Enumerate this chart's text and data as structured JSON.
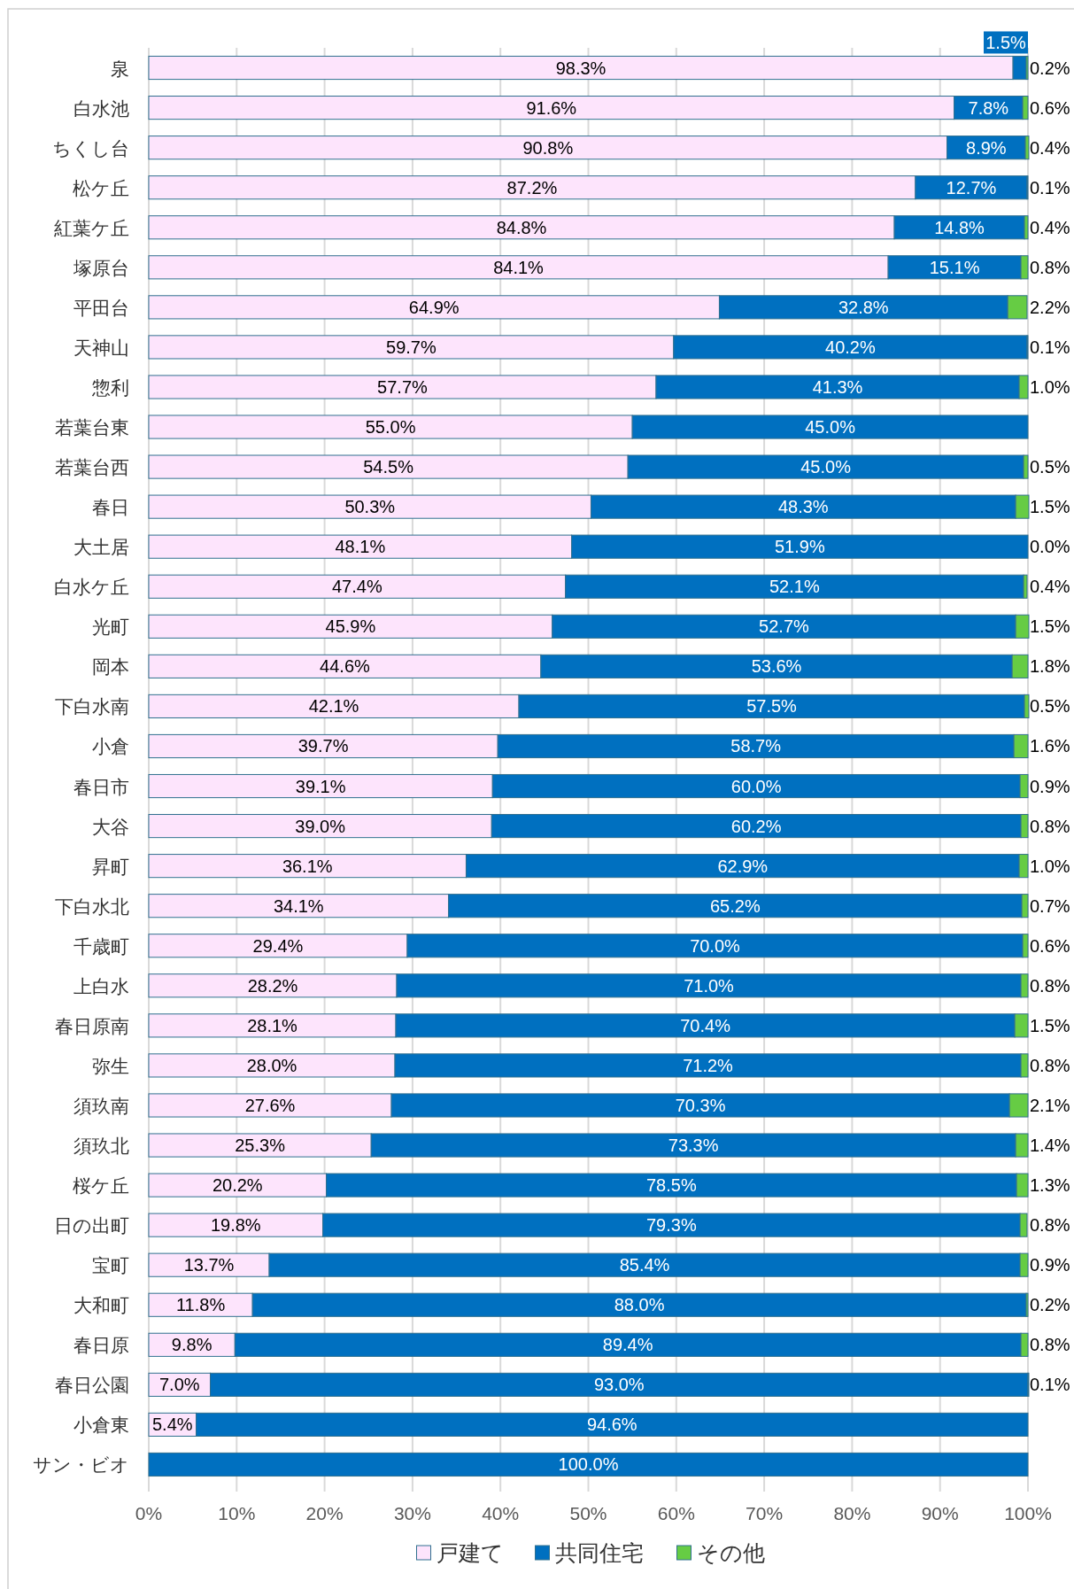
{
  "chart_data": {
    "type": "bar",
    "orientation": "horizontal",
    "stacked": true,
    "grid": "x",
    "legend": "bottom",
    "categories": [
      "泉",
      "白水池",
      "ちくし台",
      "松ケ丘",
      "紅葉ケ丘",
      "塚原台",
      "平田台",
      "天神山",
      "惣利",
      "若葉台東",
      "若葉台西",
      "春日",
      "大土居",
      "白水ケ丘",
      "光町",
      "岡本",
      "下白水南",
      "小倉",
      "春日市",
      "大谷",
      "昇町",
      "下白水北",
      "千歳町",
      "上白水",
      "春日原南",
      "弥生",
      "須玖南",
      "須玖北",
      "桜ケ丘",
      "日の出町",
      "宝町",
      "大和町",
      "春日原",
      "春日公園",
      "小倉東",
      "サン・ビオ"
    ],
    "xlim": [
      0,
      100
    ],
    "xticks": [
      {
        "value": 0,
        "label": "0%"
      },
      {
        "value": 10,
        "label": "10%"
      },
      {
        "value": 20,
        "label": "20%"
      },
      {
        "value": 30,
        "label": "30%"
      },
      {
        "value": 40,
        "label": "40%"
      },
      {
        "value": 50,
        "label": "50%"
      },
      {
        "value": 60,
        "label": "60%"
      },
      {
        "value": 70,
        "label": "70%"
      },
      {
        "value": 80,
        "label": "80%"
      },
      {
        "value": 90,
        "label": "90%"
      },
      {
        "value": 100,
        "label": "100%"
      }
    ],
    "series": [
      {
        "name": "戸建て",
        "color": "#fde4fc",
        "values": [
          98.3,
          91.6,
          90.8,
          87.2,
          84.8,
          84.1,
          64.9,
          59.7,
          57.7,
          55.0,
          54.5,
          50.3,
          48.1,
          47.4,
          45.9,
          44.6,
          42.1,
          39.7,
          39.1,
          39.0,
          36.1,
          34.1,
          29.4,
          28.2,
          28.1,
          28.0,
          27.6,
          25.3,
          20.2,
          19.8,
          13.7,
          11.8,
          9.8,
          7.0,
          5.4,
          null
        ],
        "value_labels": [
          "98.3%",
          "91.6%",
          "90.8%",
          "87.2%",
          "84.8%",
          "84.1%",
          "64.9%",
          "59.7%",
          "57.7%",
          "55.0%",
          "54.5%",
          "50.3%",
          "48.1%",
          "47.4%",
          "45.9%",
          "44.6%",
          "42.1%",
          "39.7%",
          "39.1%",
          "39.0%",
          "36.1%",
          "34.1%",
          "29.4%",
          "28.2%",
          "28.1%",
          "28.0%",
          "27.6%",
          "25.3%",
          "20.2%",
          "19.8%",
          "13.7%",
          "11.8%",
          "9.8%",
          "7.0%",
          "5.4%",
          null
        ]
      },
      {
        "name": "共同住宅",
        "color": "#0070c0",
        "values": [
          1.5,
          7.8,
          8.9,
          12.7,
          14.8,
          15.1,
          32.8,
          40.2,
          41.3,
          45.0,
          45.0,
          48.3,
          51.9,
          52.1,
          52.7,
          53.6,
          57.5,
          58.7,
          60.0,
          60.2,
          62.9,
          65.2,
          70.0,
          71.0,
          70.4,
          71.2,
          70.3,
          73.3,
          78.5,
          79.3,
          85.4,
          88.0,
          89.4,
          93.0,
          94.6,
          100.0
        ],
        "value_labels": [
          "1.5%",
          "7.8%",
          "8.9%",
          "12.7%",
          "14.8%",
          "15.1%",
          "32.8%",
          "40.2%",
          "41.3%",
          "45.0%",
          "45.0%",
          "48.3%",
          "51.9%",
          "52.1%",
          "52.7%",
          "53.6%",
          "57.5%",
          "58.7%",
          "60.0%",
          "60.2%",
          "62.9%",
          "65.2%",
          "70.0%",
          "71.0%",
          "70.4%",
          "71.2%",
          "70.3%",
          "73.3%",
          "78.5%",
          "79.3%",
          "85.4%",
          "88.0%",
          "89.4%",
          "93.0%",
          "94.6%",
          "100.0%"
        ]
      },
      {
        "name": "その他",
        "color": "#66cc44",
        "values": [
          0.2,
          0.6,
          0.4,
          0.1,
          0.4,
          0.8,
          2.2,
          0.1,
          1.0,
          null,
          0.5,
          1.5,
          0.0,
          0.4,
          1.5,
          1.8,
          0.5,
          1.6,
          0.9,
          0.8,
          1.0,
          0.7,
          0.6,
          0.8,
          1.5,
          0.8,
          2.1,
          1.4,
          1.3,
          0.8,
          0.9,
          0.2,
          0.8,
          0.1,
          null,
          null
        ],
        "value_labels": [
          "0.2%",
          "0.6%",
          "0.4%",
          "0.1%",
          "0.4%",
          "0.8%",
          "2.2%",
          "0.1%",
          "1.0%",
          null,
          "0.5%",
          "1.5%",
          "0.0%",
          "0.4%",
          "1.5%",
          "1.8%",
          "0.5%",
          "1.6%",
          "0.9%",
          "0.8%",
          "1.0%",
          "0.7%",
          "0.6%",
          "0.8%",
          "1.5%",
          "0.8%",
          "2.1%",
          "1.4%",
          "1.3%",
          "0.8%",
          "0.9%",
          "0.2%",
          "0.8%",
          "0.1%",
          null,
          null
        ]
      }
    ]
  }
}
